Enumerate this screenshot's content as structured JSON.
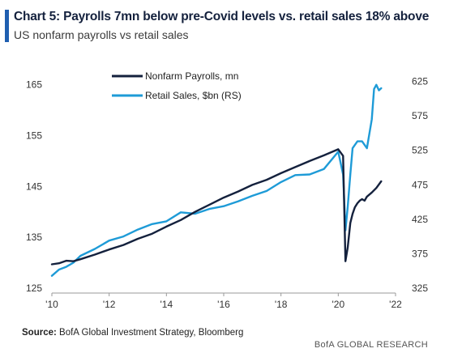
{
  "header": {
    "title": "Chart 5: Payrolls 7mn below pre-Covid levels vs. retail sales 18% above",
    "subtitle": "US nonfarm payrolls vs retail sales"
  },
  "footer": {
    "source_label": "Source:",
    "source_text": "BofA Global Investment Strategy, Bloomberg",
    "brand": "BofA GLOBAL RESEARCH"
  },
  "colors": {
    "accent": "#1f5fb0",
    "payrolls": "#14213d",
    "retail": "#1e9bd7"
  },
  "chart_data": {
    "type": "line",
    "legend_position": "top-center",
    "grid": false,
    "x_ticks": [
      "'10",
      "'12",
      "'14",
      "'16",
      "'18",
      "'20",
      "'22"
    ],
    "y_left_ticks": [
      "125",
      "135",
      "145",
      "155",
      "165"
    ],
    "y_right_ticks": [
      "325",
      "375",
      "425",
      "475",
      "525",
      "575",
      "625"
    ],
    "xlim": [
      2010,
      2022
    ],
    "ylim_left": [
      125,
      167
    ],
    "ylim_right": [
      325,
      635
    ],
    "series": [
      {
        "name": "Nonfarm Payrolls, mn",
        "axis": "left",
        "color": "#14213d",
        "x": [
          2010.0,
          2010.25,
          2010.5,
          2010.75,
          2011.0,
          2011.5,
          2012.0,
          2012.5,
          2013.0,
          2013.5,
          2014.0,
          2014.5,
          2015.0,
          2015.5,
          2016.0,
          2016.5,
          2017.0,
          2017.5,
          2018.0,
          2018.5,
          2019.0,
          2019.5,
          2020.0,
          2020.17,
          2020.25,
          2020.33,
          2020.42,
          2020.5,
          2020.58,
          2020.67,
          2020.75,
          2020.83,
          2020.92,
          2021.0,
          2021.17,
          2021.33,
          2021.5
        ],
        "y": [
          129.7,
          129.9,
          130.4,
          130.3,
          130.7,
          131.6,
          132.6,
          133.5,
          134.7,
          135.7,
          137.1,
          138.4,
          140.0,
          141.4,
          142.8,
          144.0,
          145.3,
          146.3,
          147.6,
          148.8,
          150.0,
          151.1,
          152.3,
          151.0,
          130.3,
          133.0,
          137.8,
          139.6,
          140.9,
          141.7,
          142.2,
          142.5,
          142.2,
          143.0,
          143.8,
          144.7,
          146.0
        ]
      },
      {
        "name": "Retail Sales, $bn (RS)",
        "axis": "right",
        "color": "#1e9bd7",
        "x": [
          2010.0,
          2010.25,
          2010.5,
          2010.75,
          2011.0,
          2011.5,
          2012.0,
          2012.5,
          2013.0,
          2013.5,
          2014.0,
          2014.5,
          2015.0,
          2015.5,
          2016.0,
          2016.5,
          2017.0,
          2017.5,
          2018.0,
          2018.5,
          2019.0,
          2019.5,
          2020.0,
          2020.17,
          2020.25,
          2020.33,
          2020.42,
          2020.5,
          2020.67,
          2020.83,
          2021.0,
          2021.17,
          2021.25,
          2021.33,
          2021.42,
          2021.5
        ],
        "y": [
          343,
          352,
          356,
          362,
          372,
          382,
          394,
          400,
          410,
          418,
          422,
          435,
          433,
          440,
          444,
          451,
          459,
          466,
          479,
          489,
          490,
          498,
          523,
          490,
          409,
          443,
          490,
          528,
          538,
          538,
          528,
          570,
          614,
          620,
          612,
          615
        ]
      }
    ]
  }
}
